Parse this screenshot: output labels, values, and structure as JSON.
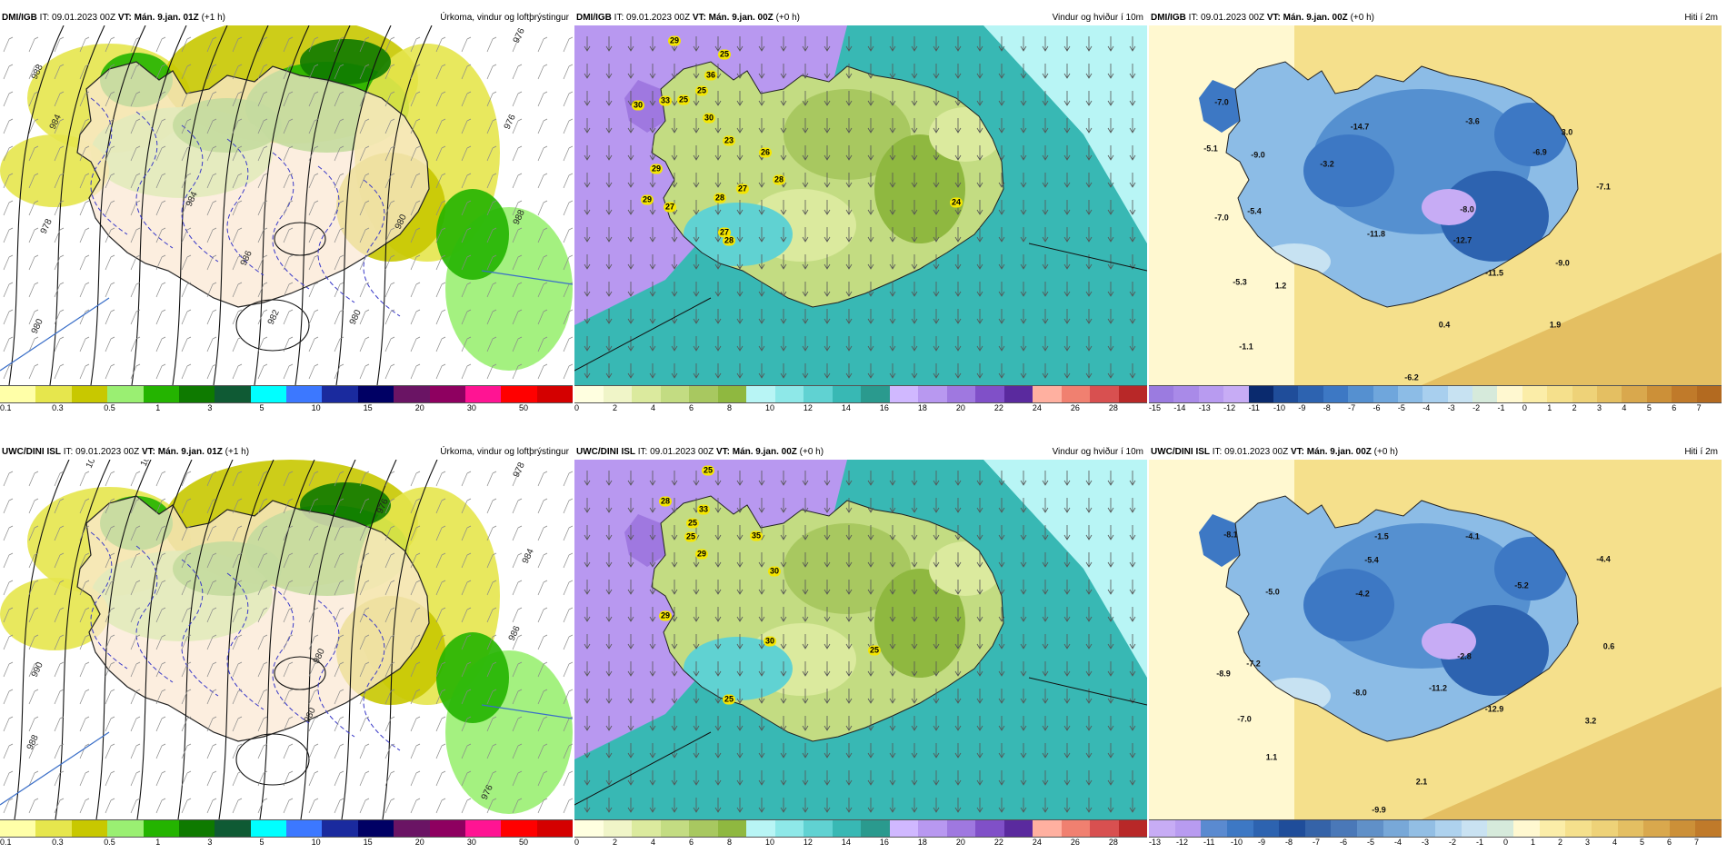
{
  "colors": {
    "precip_scale": [
      "#ffffa8",
      "#e6e64d",
      "#c8c800",
      "#9aef72",
      "#24b400",
      "#0e7a00",
      "#0f5a34",
      "#00ffff",
      "#3c78ff",
      "#1a2a9e",
      "#000064",
      "#6a1464",
      "#8e0060",
      "#ff1493",
      "#ff0000",
      "#d40000"
    ],
    "wind_scale": [
      "#ffffe0",
      "#f0f5c8",
      "#dbea9e",
      "#c3dc82",
      "#a8c860",
      "#8fb840",
      "#b8f5f5",
      "#8ee8e8",
      "#60d2d2",
      "#38b8b4",
      "#2a9a8e",
      "#d0b8ff",
      "#b898f0",
      "#9f78e0",
      "#8050c8",
      "#5a2a9e",
      "#ffb0a0",
      "#f08070",
      "#d85050",
      "#b82828"
    ],
    "temp_scale_top": [
      "#9b7be0",
      "#a98ae8",
      "#b89bf0",
      "#c7acf5",
      "#0a2a6e",
      "#1f4d9a",
      "#2d63b0",
      "#3d78c4",
      "#5590d0",
      "#6fa6dc",
      "#8cbce6",
      "#a8cfee",
      "#c7e2f2",
      "#d6eadb",
      "#fff8d0",
      "#fbeda8",
      "#f5e08c",
      "#eed278",
      "#e4bf62",
      "#d9a84d",
      "#cc9038",
      "#c07a2a",
      "#b36a20"
    ],
    "temp_scale_bottom": [
      "#c7acf5",
      "#b89bf0",
      "#5a8ad0",
      "#3d78c4",
      "#2d63b0",
      "#1f4d9a",
      "#3563a8",
      "#4a78b8",
      "#6090c8",
      "#78a8d8",
      "#92bee4",
      "#aed2ee",
      "#c9e2f2",
      "#d6eadb",
      "#fff8d0",
      "#fbeda8",
      "#f5e08c",
      "#eed278",
      "#e4bf62",
      "#d9a84d",
      "#cc9038",
      "#c07a2a"
    ]
  },
  "panels": [
    {
      "id": "dmi-precip",
      "model": "DMI/IGB",
      "it": "IT: 09.01.2023 00Z",
      "vt": "VT: Mán. 9.jan. 01Z",
      "lead": "(+1 h)",
      "title": "Úrkoma, vindur og loftþrýstingur",
      "scale_labels": [
        "0.1",
        "0.3",
        "0.5",
        "1",
        "3",
        "5",
        "10",
        "15",
        "20",
        "30",
        "50"
      ],
      "isobars": [
        "988",
        "984",
        "976",
        "980",
        "976",
        "982",
        "978",
        "980",
        "988",
        "986",
        "980",
        "984"
      ]
    },
    {
      "id": "dmi-wind",
      "model": "DMI/IGB",
      "it": "IT: 09.01.2023 00Z",
      "vt": "VT: Mán. 9.jan. 00Z",
      "lead": "(+0 h)",
      "title": "Vindur og hviður í 10m",
      "scale_labels": [
        "0",
        "2",
        "4",
        "6",
        "8",
        "10",
        "12",
        "14",
        "16",
        "18",
        "20",
        "22",
        "24",
        "26",
        "28"
      ],
      "gusts": [
        "29",
        "25",
        "36",
        "25",
        "25",
        "33",
        "30",
        "23",
        "26",
        "30",
        "28",
        "27",
        "29",
        "28",
        "27",
        "27",
        "29",
        "28",
        "24"
      ]
    },
    {
      "id": "dmi-temp",
      "model": "DMI/IGB",
      "it": "IT: 09.01.2023 00Z",
      "vt": "VT: Mán. 9.jan. 00Z",
      "lead": "(+0 h)",
      "title": "Hiti í 2m",
      "scale_labels": [
        "-15",
        "-14",
        "-13",
        "-12",
        "-11",
        "-10",
        "-9",
        "-8",
        "-7",
        "-6",
        "-5",
        "-4",
        "-3",
        "-2",
        "-1",
        "0",
        "1",
        "2",
        "3",
        "4",
        "5",
        "6",
        "7"
      ],
      "temps": [
        "-7.0",
        "-5.1",
        "-9.0",
        "-14.7",
        "-3.6",
        "3.0",
        "-3.2",
        "-6.9",
        "-7.1",
        "-5.4",
        "-8.0",
        "-7.0",
        "-11.8",
        "-12.7",
        "-9.0",
        "-5.3",
        "1.2",
        "-11.5",
        "1.9",
        "0.4",
        "-1.1",
        "-6.2"
      ]
    },
    {
      "id": "uwc-precip",
      "model": "UWC/DINI ISL",
      "it": "IT: 09.01.2023 00Z",
      "vt": "VT: Mán. 9.jan. 01Z",
      "lead": "(+1 h)",
      "title": "Úrkoma, vindur og loftþrýstingur",
      "scale_labels": [
        "0.1",
        "0.3",
        "0.5",
        "1",
        "3",
        "5",
        "10",
        "15",
        "20",
        "30",
        "50"
      ],
      "isobars": [
        "10",
        "10",
        "978",
        "980",
        "984",
        "976",
        "990",
        "988",
        "986",
        "980",
        "976"
      ]
    },
    {
      "id": "uwc-wind",
      "model": "UWC/DINI ISL",
      "it": "IT: 09.01.2023 00Z",
      "vt": "VT: Mán. 9.jan. 00Z",
      "lead": "(+0 h)",
      "title": "Vindur og hviður í 10m",
      "scale_labels": [
        "0",
        "2",
        "4",
        "6",
        "8",
        "10",
        "12",
        "14",
        "16",
        "18",
        "20",
        "22",
        "24",
        "26",
        "28"
      ],
      "gusts": [
        "25",
        "28",
        "33",
        "25",
        "25",
        "35",
        "29",
        "30",
        "29",
        "30",
        "25",
        "25"
      ]
    },
    {
      "id": "uwc-temp",
      "model": "UWC/DINI ISL",
      "it": "IT: 09.01.2023 00Z",
      "vt": "VT: Mán. 9.jan. 00Z",
      "lead": "(+0 h)",
      "title": "Hiti í 2m",
      "scale_labels": [
        "-13",
        "-12",
        "-11",
        "-10",
        "-9",
        "-8",
        "-7",
        "-6",
        "-5",
        "-4",
        "-3",
        "-2",
        "-1",
        "0",
        "1",
        "2",
        "3",
        "4",
        "5",
        "6",
        "7"
      ],
      "temps": [
        "-8.1",
        "-1.5",
        "-4.1",
        "-5.4",
        "-4.4",
        "-5.0",
        "-4.2",
        "-5.2",
        "0.6",
        "-7.2",
        "-2.8",
        "-8.9",
        "-8.0",
        "-11.2",
        "-12.9",
        "-7.0",
        "3.2",
        "1.1",
        "2.1",
        "-9.9"
      ]
    }
  ]
}
